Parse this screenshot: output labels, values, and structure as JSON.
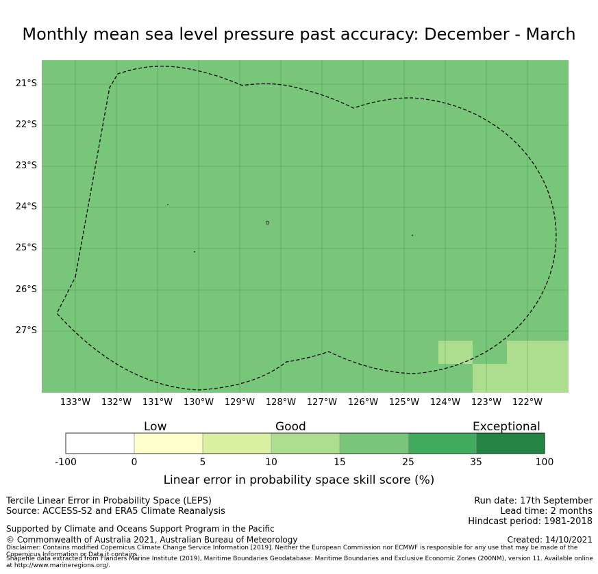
{
  "title": "Monthly mean sea level pressure past accuracy: December - March",
  "map": {
    "lat_labels": [
      "21°S",
      "22°S",
      "23°S",
      "24°S",
      "25°S",
      "26°S",
      "27°S"
    ],
    "lon_labels": [
      "133°W",
      "132°W",
      "131°W",
      "130°W",
      "129°W",
      "128°W",
      "127°W",
      "126°W",
      "125°W",
      "124°W",
      "123°W",
      "122°W"
    ],
    "lat_range": [
      "20.4°S",
      "28.5°S"
    ],
    "lon_range": [
      "133.8°W",
      "121.0°W"
    ],
    "background_class": "15 - 25",
    "patches": [
      {
        "class": "10 - 15",
        "lon": [
          -124.2,
          -123.4
        ],
        "lat": [
          -27.8,
          -27.2
        ]
      },
      {
        "class": "10 - 15",
        "lon": [
          -123.4,
          -121.0
        ],
        "lat": [
          -28.5,
          -27.8
        ]
      },
      {
        "class": "10 - 15",
        "lon": [
          -122.5,
          -121.0
        ],
        "lat": [
          -27.8,
          -27.2
        ]
      }
    ],
    "boundary": "Exclusive Economic Zone (dashed)"
  },
  "legend": {
    "categories": [
      "Low",
      "Good",
      "Exceptional"
    ],
    "ticks": [
      "-100",
      "0",
      "5",
      "10",
      "15",
      "25",
      "35",
      "100"
    ],
    "colors": [
      "#ffffff",
      "#ffffcc",
      "#d9f0a3",
      "#addd8e",
      "#78c679",
      "#41ab5d",
      "#238443"
    ],
    "label": "Linear error in probability space skill score (%)"
  },
  "footer": {
    "left": [
      "Tercile Linear Error in Probability Space (LEPS)",
      "Source: ACCESS-S2 and ERA5 Climate Reanalysis"
    ],
    "right": [
      "Run date: 17th September",
      "Lead time: 2 months",
      "Hindcast period: 1981-2018"
    ],
    "supported": "Supported by Climate and Oceans Support Program in the Pacific",
    "copyright": "© Commonwealth of Australia 2021, Australian Bureau of Meteorology",
    "created": "Created: 14/10/2021",
    "disclaimer": "Disclaimer: Contains modified Copernicus Climate Change Service Information [2019]. Neither the European Commission nor ECMWF is responsible for any use that may be made of the Copernicus Information or Data it contains.",
    "shapefile": "Shapefile data extracted from Flanders Marine Institute (2019), Maritime Boundaries Geodatabase: Maritime Boundaries and Exclusive Economic Zones (200NM), version 11. Available online at http://www.marineregions.org/."
  }
}
